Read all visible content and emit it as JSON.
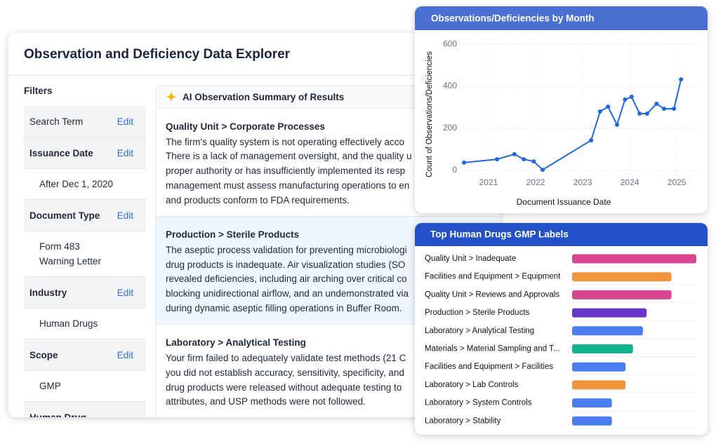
{
  "header": {
    "title": "Observation and Deficiency Data Explorer"
  },
  "filters": {
    "title": "Filters",
    "items": [
      {
        "label": "Search Term",
        "action": "Edit"
      },
      {
        "label": "Issuance Date",
        "action": "Edit",
        "values": [
          "After Dec 1, 2020"
        ]
      },
      {
        "label": "Document Type",
        "action": "Edit",
        "values": [
          "Form 483",
          "Warning Letter"
        ]
      },
      {
        "label": "Industry",
        "action": "Edit",
        "values": [
          "Human Drugs"
        ]
      },
      {
        "label": "Scope",
        "action": "Edit",
        "values": [
          "GMP"
        ]
      },
      {
        "label": "Human Drug"
      }
    ]
  },
  "summary": {
    "title": "AI Observation Summary of Results",
    "items": [
      {
        "heading": "Quality Unit > Corporate Processes",
        "lines": [
          "The firm's quality system is not operating effectively acco",
          "There is a lack of management oversight, and the quality u",
          "proper authority or has insufficiently implemented its resp",
          "management must assess manufacturing operations to en",
          "and products conform to FDA requirements."
        ]
      },
      {
        "heading": "Production > Sterile Products",
        "lines": [
          "The aseptic process validation for preventing microbiologi",
          "drug products is inadequate. Air visualization studies (SO",
          "revealed deficiencies, including air arching over critical co",
          "blocking unidirectional airflow, and an undemonstrated via",
          "during dynamic aseptic filling operations in Buffer Room."
        ]
      },
      {
        "heading": "Laboratory > Analytical Testing",
        "lines": [
          "Your firm failed to adequately validate test methods (21 C",
          "you did not establish accuracy, sensitivity, specificity, and",
          "drug products were released without adequate testing to",
          "attributes, and USP methods were not followed."
        ]
      }
    ]
  },
  "chart_data": [
    {
      "type": "line",
      "title": "Observations/Deficiencies by Month",
      "x_label": "Document Issuance Date",
      "y_label": "Count of Observations/Deficiencies",
      "x": [
        2020.48,
        2021.18,
        2021.55,
        2021.75,
        2021.96,
        2022.15,
        2023.18,
        2023.37,
        2023.54,
        2023.73,
        2023.9,
        2024.04,
        2024.21,
        2024.37,
        2024.57,
        2024.73,
        2024.94,
        2025.09
      ],
      "series": [
        {
          "name": "Count",
          "color": "#1f66e0",
          "values": [
            37,
            53,
            77,
            53,
            43,
            3,
            143,
            280,
            303,
            217,
            337,
            350,
            270,
            270,
            317,
            293,
            293,
            433
          ]
        }
      ],
      "xlim": [
        2020.39,
        2025.49
      ],
      "xticks": [
        2021,
        2022,
        2023,
        2024,
        2025
      ],
      "ylim": [
        -40,
        627
      ],
      "yticks": [
        0,
        200,
        400,
        600
      ],
      "grid": true
    },
    {
      "type": "hbar",
      "title": "Top Human Drugs GMP Labels",
      "categories": [
        "Quality Unit > Inadequate",
        "Facilities and Equipment > Equipment",
        "Quality Unit > Reviews and Approvals",
        "Production > Sterile Products",
        "Laboratory > Analytical Testing",
        "Materials > Material Sampling and T...",
        "Facilities and Equipment > Facilities",
        "Laboratory > Lab Controls",
        "Laboratory > System Controls",
        "Laboratory > Stability"
      ],
      "values": [
        100,
        80,
        80,
        60,
        57,
        49,
        43,
        43,
        32,
        32
      ],
      "colors": [
        "#d9468f",
        "#f0953e",
        "#d9468f",
        "#6a35c9",
        "#4a7ef0",
        "#12b38a",
        "#4a7ef0",
        "#f0953e",
        "#4a7ef0",
        "#4a7ef0"
      ],
      "xlim": [
        0,
        100
      ]
    }
  ]
}
